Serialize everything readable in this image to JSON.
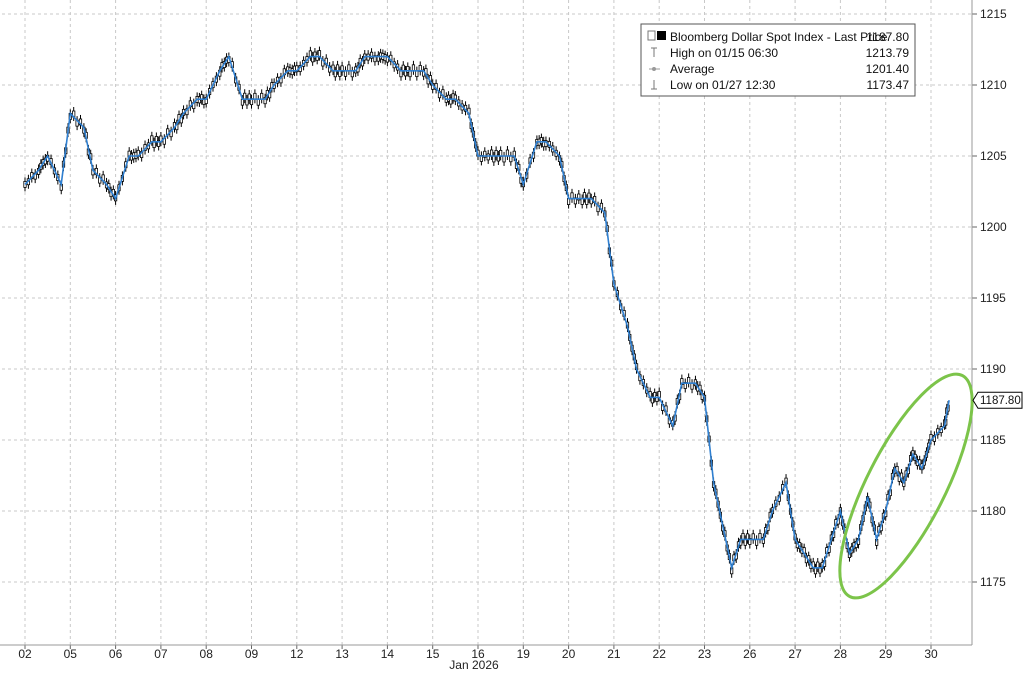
{
  "chart_data": {
    "type": "line",
    "title": "",
    "xlabel": "Jan 2026",
    "ylabel": "",
    "ylim": [
      1171,
      1216
    ],
    "yticks": [
      1175,
      1180,
      1185,
      1190,
      1195,
      1200,
      1205,
      1210,
      1215
    ],
    "grid": true,
    "legend_position": "top-right",
    "x_labels": [
      "02",
      "05",
      "06",
      "07",
      "08",
      "09",
      "12",
      "13",
      "14",
      "15",
      "16",
      "19",
      "20",
      "21",
      "22",
      "23",
      "26",
      "27",
      "28",
      "29",
      "30"
    ],
    "series": [
      {
        "name": "Bloomberg Dollar Spot Index - Last Price",
        "last_value": "1187.80",
        "x": [
          0,
          0.3,
          0.5,
          0.8,
          1,
          1.3,
          1.5,
          1.8,
          2,
          2.3,
          2.5,
          2.8,
          3,
          3.3,
          3.5,
          3.8,
          4,
          4.3,
          4.5,
          4.8,
          5,
          5.3,
          5.5,
          5.8,
          6,
          6.3,
          6.5,
          6.8,
          7,
          7.3,
          7.5,
          7.8,
          8,
          8.3,
          8.5,
          8.8,
          9,
          9.3,
          9.5,
          9.8,
          10,
          10.3,
          10.5,
          10.8,
          11,
          11.3,
          11.5,
          11.8,
          12,
          12.3,
          12.5,
          12.8,
          13,
          13.3,
          13.5,
          13.8,
          14,
          14.3,
          14.5,
          14.8,
          15,
          15.2,
          15.4,
          15.6,
          15.8,
          16,
          16.3,
          16.5,
          16.8,
          17,
          17.2,
          17.4,
          17.6,
          17.8,
          18,
          18.2,
          18.4,
          18.6,
          18.8,
          19,
          19.2,
          19.4,
          19.6,
          19.8,
          20,
          20.3,
          20.4
        ],
        "values": [
          1203,
          1204,
          1205,
          1203,
          1208,
          1207,
          1204,
          1203,
          1202,
          1205,
          1205,
          1206,
          1206,
          1207,
          1208,
          1209,
          1209,
          1211,
          1212,
          1209,
          1209,
          1209,
          1210,
          1211,
          1211,
          1212,
          1212,
          1211,
          1211,
          1211,
          1212,
          1212,
          1212,
          1211,
          1211,
          1211,
          1210,
          1209,
          1209,
          1208,
          1205,
          1205,
          1205,
          1205,
          1203,
          1206,
          1206,
          1205,
          1202,
          1202,
          1202,
          1201,
          1196,
          1193,
          1190,
          1188,
          1188,
          1186,
          1189,
          1189,
          1188,
          1182,
          1179,
          1176,
          1178,
          1178,
          1178,
          1180,
          1182,
          1178,
          1177,
          1176,
          1176,
          1178,
          1180,
          1177,
          1178,
          1181,
          1178,
          1180,
          1183,
          1182,
          1184,
          1183,
          1185,
          1186,
          1187.8
        ]
      }
    ],
    "legend": {
      "title": "Bloomberg Dollar Spot Index - Last Price",
      "title_value": "1187.80",
      "rows": [
        {
          "label": "High on 01/15 06:30",
          "value": "1213.79"
        },
        {
          "label": "Average",
          "value": "1201.40"
        },
        {
          "label": "Low on 01/27 12:30",
          "value": "1173.47"
        }
      ]
    },
    "colors": {
      "line": "#2f7fd0",
      "candle": "#000000",
      "grid": "#c8c8c8",
      "highlight_ellipse": "#7cc44a"
    },
    "annotations": [
      "green ellipse highlighting rebound on 29-30"
    ]
  }
}
